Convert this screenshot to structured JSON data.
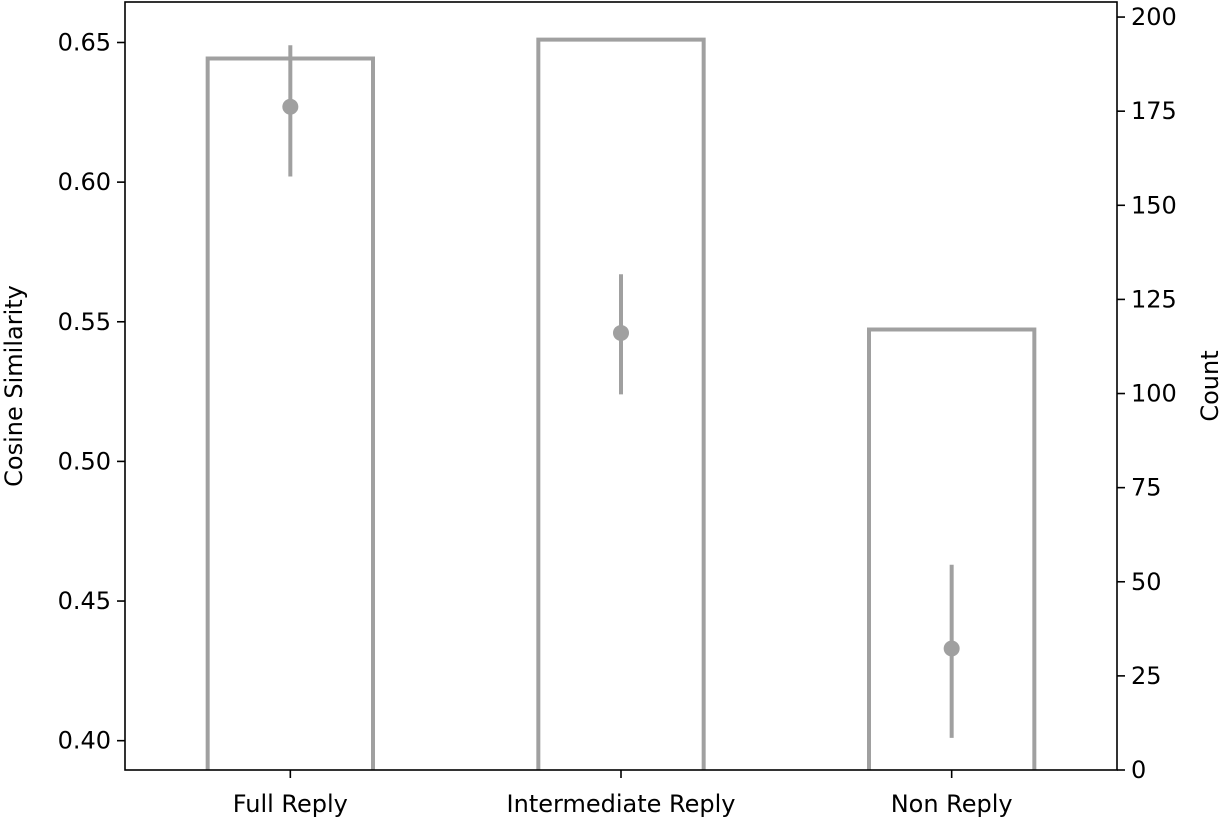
{
  "chart_data": {
    "type": "bar",
    "categories": [
      "Full Reply",
      "Intermediate Reply",
      "Non Reply"
    ],
    "bar_series": {
      "axis": "right",
      "values": [
        189,
        194,
        117
      ]
    },
    "point_series": {
      "axis": "left",
      "values": [
        0.627,
        0.546,
        0.433
      ],
      "error_low": [
        0.602,
        0.524,
        0.401
      ],
      "error_high": [
        0.649,
        0.567,
        0.463
      ]
    },
    "ylabel": "Cosine Similarity",
    "y2label": "Count",
    "ylim": [
      0.3895,
      0.6645
    ],
    "y2lim": [
      0,
      204
    ],
    "yticks": [
      "0.40",
      "0.45",
      "0.50",
      "0.55",
      "0.60",
      "0.65"
    ],
    "y2ticks": [
      "0",
      "25",
      "50",
      "75",
      "100",
      "125",
      "150",
      "175",
      "200"
    ],
    "colors": {
      "bar_edge": "#a0a0a0",
      "point": "#a0a0a0"
    }
  }
}
